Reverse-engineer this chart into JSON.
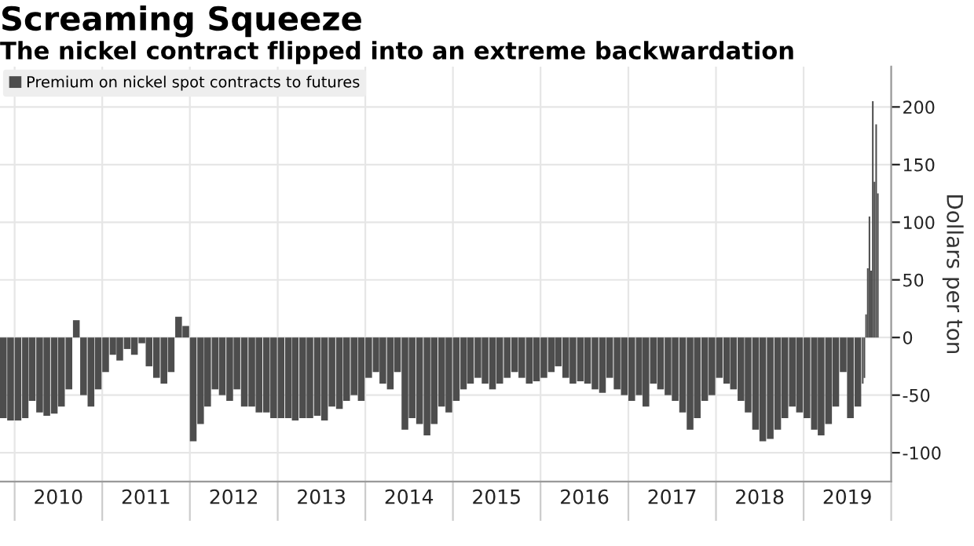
{
  "chart_data": {
    "type": "bar",
    "title": "Screaming Squeeze",
    "subtitle": "The nickel contract flipped into an extreme backwardation",
    "ylabel": "Dollars per ton",
    "x": [
      "2009-11",
      "2009-12",
      "2010-01",
      "2010-02",
      "2010-03",
      "2010-04",
      "2010-05",
      "2010-06",
      "2010-07",
      "2010-08",
      "2010-09",
      "2010-10",
      "2010-11",
      "2010-12",
      "2011-01",
      "2011-02",
      "2011-03",
      "2011-04",
      "2011-05",
      "2011-06",
      "2011-07",
      "2011-08",
      "2011-09",
      "2011-10",
      "2011-11",
      "2011-12",
      "2012-01",
      "2012-02",
      "2012-03",
      "2012-04",
      "2012-05",
      "2012-06",
      "2012-07",
      "2012-08",
      "2012-09",
      "2012-10",
      "2012-11",
      "2012-12",
      "2013-01",
      "2013-02",
      "2013-03",
      "2013-04",
      "2013-05",
      "2013-06",
      "2013-07",
      "2013-08",
      "2013-09",
      "2013-10",
      "2013-11",
      "2013-12",
      "2014-01",
      "2014-02",
      "2014-03",
      "2014-04",
      "2014-05",
      "2014-06",
      "2014-07",
      "2014-08",
      "2014-09",
      "2014-10",
      "2014-11",
      "2014-12",
      "2015-01",
      "2015-02",
      "2015-03",
      "2015-04",
      "2015-05",
      "2015-06",
      "2015-07",
      "2015-08",
      "2015-09",
      "2015-10",
      "2015-11",
      "2015-12",
      "2016-01",
      "2016-02",
      "2016-03",
      "2016-04",
      "2016-05",
      "2016-06",
      "2016-07",
      "2016-08",
      "2016-09",
      "2016-10",
      "2016-11",
      "2016-12",
      "2017-01",
      "2017-02",
      "2017-03",
      "2017-04",
      "2017-05",
      "2017-06",
      "2017-07",
      "2017-08",
      "2017-09",
      "2017-10",
      "2017-11",
      "2017-12",
      "2018-01",
      "2018-02",
      "2018-03",
      "2018-04",
      "2018-05",
      "2018-06",
      "2018-07",
      "2018-08",
      "2018-09",
      "2018-10",
      "2018-11",
      "2018-12",
      "2019-01",
      "2019-02",
      "2019-03",
      "2019-04",
      "2019-05",
      "2019-06",
      "2019-07",
      "2019-08",
      "2019-09-01",
      "2019-09-08",
      "2019-09-15",
      "2019-09-22",
      "2019-09-29",
      "2019-10-06",
      "2019-10-13",
      "2019-10-20",
      "2019-10-27",
      "2019-11-03"
    ],
    "series": [
      {
        "name": "Premium on nickel spot contracts to futures",
        "color": "#4d4d4d",
        "values": [
          -70,
          -72,
          -72,
          -70,
          -55,
          -65,
          -68,
          -66,
          -60,
          -45,
          15,
          -50,
          -60,
          -45,
          -30,
          -15,
          -20,
          -10,
          -15,
          -5,
          -25,
          -35,
          -40,
          -30,
          18,
          10,
          -90,
          -75,
          -60,
          -45,
          -50,
          -55,
          -45,
          -60,
          -60,
          -65,
          -65,
          -70,
          -70,
          -70,
          -72,
          -70,
          -70,
          -68,
          -72,
          -60,
          -62,
          -55,
          -50,
          -55,
          -35,
          -30,
          -40,
          -45,
          -30,
          -80,
          -70,
          -75,
          -85,
          -75,
          -60,
          -65,
          -55,
          -45,
          -40,
          -35,
          -40,
          -45,
          -40,
          -35,
          -30,
          -35,
          -40,
          -38,
          -35,
          -30,
          -25,
          -35,
          -40,
          -38,
          -40,
          -45,
          -48,
          -35,
          -45,
          -50,
          -55,
          -50,
          -60,
          -40,
          -45,
          -50,
          -55,
          -65,
          -80,
          -70,
          -55,
          -50,
          -35,
          -40,
          -45,
          -55,
          -65,
          -80,
          -90,
          -88,
          -80,
          -70,
          -60,
          -65,
          -70,
          -80,
          -85,
          -75,
          -60,
          -30,
          -70,
          -60,
          -40,
          -35,
          20,
          60,
          105,
          58,
          205,
          135,
          185,
          125
        ]
      }
    ],
    "xlim": [
      "2009-11-01",
      "2020-01-01"
    ],
    "xticks": [
      {
        "value": "2010-01-01",
        "label": null
      },
      {
        "value": "2011-01-01",
        "label": null
      },
      {
        "value": "2012-01-01",
        "label": null
      },
      {
        "value": "2013-01-01",
        "label": null
      },
      {
        "value": "2014-01-01",
        "label": null
      },
      {
        "value": "2015-01-01",
        "label": null
      },
      {
        "value": "2016-01-01",
        "label": null
      },
      {
        "value": "2017-01-01",
        "label": null
      },
      {
        "value": "2018-01-01",
        "label": null
      },
      {
        "value": "2019-01-01",
        "label": null
      },
      {
        "value": "2020-01-01",
        "label": null
      },
      {
        "value": "2010-07-02",
        "label": "2010"
      },
      {
        "value": "2011-07-02",
        "label": "2011"
      },
      {
        "value": "2012-07-02",
        "label": "2012"
      },
      {
        "value": "2013-07-02",
        "label": "2013"
      },
      {
        "value": "2014-07-02",
        "label": "2014"
      },
      {
        "value": "2015-07-02",
        "label": "2015"
      },
      {
        "value": "2016-07-02",
        "label": "2016"
      },
      {
        "value": "2017-07-02",
        "label": "2017"
      },
      {
        "value": "2018-07-02",
        "label": "2018"
      },
      {
        "value": "2019-07-02",
        "label": "2019"
      }
    ],
    "ylim": [
      -125,
      235
    ],
    "yticks": [
      -100,
      -50,
      0,
      50,
      100,
      150,
      200
    ],
    "grid": true,
    "legend": "top left"
  }
}
